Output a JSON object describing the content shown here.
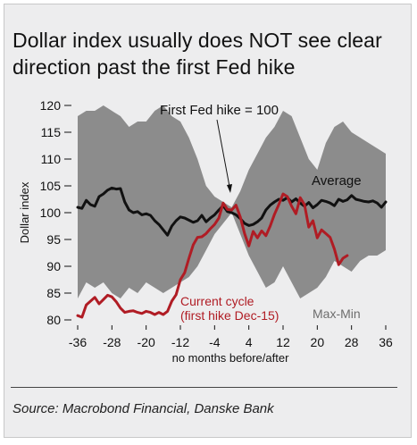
{
  "title": "Dollar index usually does NOT see clear direction past the first Fed hike",
  "source": "Source: Macrobond Financial, Danske Bank",
  "colors": {
    "background": "#ededee",
    "band": "#8c8c8c",
    "average": "#111111",
    "current": "#b01c24"
  },
  "chart_data": {
    "type": "line",
    "xlabel": "no months before/after",
    "ylabel": "Dollar index",
    "xlim": [
      -36,
      36
    ],
    "ylim": [
      80,
      120
    ],
    "x_ticks": [
      -36,
      -28,
      -20,
      -12,
      -4,
      4,
      12,
      20,
      28,
      36
    ],
    "x_tick_labels": [
      "-36",
      "-28",
      "-20",
      "-12",
      "-4",
      "4",
      "12",
      "20",
      "28",
      "36"
    ],
    "y_ticks": [
      80,
      85,
      90,
      95,
      100,
      105,
      110,
      115,
      120
    ],
    "y_tick_labels": [
      "80",
      "85",
      "90",
      "95",
      "100",
      "105",
      "110",
      "115",
      "120"
    ],
    "grid": false,
    "annotations": {
      "first_hike": "First Fed hike = 100",
      "average": "Average",
      "current_line1": "Current cycle",
      "current_line2": "(first hike Dec-15)",
      "maxmin": "Max-Min"
    },
    "band": {
      "name": "Max-Min",
      "x": [
        -36,
        -34,
        -32,
        -30,
        -28,
        -26,
        -24,
        -22,
        -20,
        -18,
        -16,
        -14,
        -12,
        -10,
        -8,
        -6,
        -4,
        -2,
        0,
        2,
        4,
        6,
        8,
        10,
        12,
        14,
        16,
        18,
        20,
        22,
        24,
        26,
        28,
        30,
        32,
        34,
        36
      ],
      "upper": [
        118,
        119,
        119,
        120,
        119,
        118,
        116,
        117,
        117,
        119,
        120,
        118,
        117,
        114,
        110,
        105,
        103,
        102,
        101,
        104,
        108,
        111,
        114,
        116,
        119,
        118,
        114,
        110,
        108,
        113,
        116,
        117,
        115,
        114,
        113,
        112,
        111
      ],
      "lower": [
        84,
        87,
        86,
        87,
        85,
        84,
        86,
        85,
        87,
        86,
        85,
        86,
        87,
        88,
        90,
        93,
        96,
        98,
        100,
        96,
        92,
        89,
        86,
        87,
        90,
        87,
        84,
        85,
        86,
        88,
        91,
        90,
        89,
        91,
        92,
        92,
        93
      ]
    },
    "series": [
      {
        "name": "Average",
        "x": [
          -36,
          -35,
          -34,
          -33,
          -32,
          -31,
          -30,
          -29,
          -28,
          -27,
          -26,
          -25,
          -24,
          -23,
          -22,
          -21,
          -20,
          -19,
          -18,
          -17,
          -16,
          -15,
          -14,
          -13,
          -12,
          -11,
          -10,
          -9,
          -8,
          -7,
          -6,
          -5,
          -4,
          -3,
          -2,
          -1,
          0,
          1,
          2,
          3,
          4,
          5,
          6,
          7,
          8,
          9,
          10,
          11,
          12,
          13,
          14,
          15,
          16,
          17,
          18,
          19,
          20,
          21,
          22,
          23,
          24,
          25,
          26,
          27,
          28,
          29,
          30,
          31,
          32,
          33,
          34,
          35,
          36
        ],
        "values": [
          101,
          100.8,
          102.3,
          101.5,
          101.2,
          103,
          103.5,
          104.2,
          104.6,
          104.4,
          104.5,
          102,
          100.5,
          100,
          100.2,
          99.6,
          99.8,
          99.5,
          98.5,
          97.8,
          96.8,
          95.8,
          97.5,
          98.5,
          99.2,
          99,
          98.6,
          98.2,
          98.5,
          99.5,
          98.3,
          99,
          99.6,
          100.5,
          101.3,
          100.2,
          100,
          99.6,
          98.9,
          98,
          97.6,
          97.8,
          98.3,
          99,
          100.5,
          101.4,
          102,
          102.5,
          102.3,
          102.8,
          102,
          102.6,
          101.8,
          101.2,
          101.9,
          100.9,
          101.5,
          102.3,
          102.1,
          101.8,
          101.3,
          102.5,
          102.1,
          102.4,
          103.2,
          102.5,
          102.3,
          102.1,
          102,
          102.2,
          101.8,
          101,
          102
        ]
      },
      {
        "name": "Current cycle",
        "x": [
          -36,
          -35,
          -34,
          -33,
          -32,
          -31,
          -30,
          -29,
          -28,
          -27,
          -26,
          -25,
          -24,
          -23,
          -22,
          -21,
          -20,
          -19,
          -18,
          -17,
          -16,
          -15,
          -14,
          -13,
          -12,
          -11,
          -10,
          -9,
          -8,
          -7,
          -6,
          -5,
          -4,
          -3,
          -2,
          -1,
          0,
          1,
          2,
          3,
          4,
          5,
          6,
          7,
          8,
          9,
          10,
          11,
          12,
          13,
          14,
          15,
          16,
          17,
          18,
          19,
          20,
          21,
          22,
          23,
          24,
          25,
          26,
          27
        ],
        "values": [
          80.8,
          80.5,
          82.8,
          83.5,
          84.2,
          83,
          83.8,
          84.6,
          84.3,
          83.4,
          82.2,
          81.4,
          81.6,
          81.7,
          81.4,
          81.2,
          81.6,
          81.4,
          81,
          81.4,
          81,
          81.6,
          83.5,
          84.7,
          87.5,
          88.8,
          91.5,
          94,
          95.4,
          95.5,
          96.1,
          97,
          97.8,
          99,
          101.8,
          100.6,
          100.5,
          101.4,
          99.2,
          96.1,
          93.8,
          96.5,
          95.3,
          96.6,
          95.7,
          97.5,
          99.7,
          101.5,
          103.5,
          103,
          101.2,
          99.8,
          102.8,
          101.5,
          97.3,
          98.5,
          95.3,
          96.8,
          96.1,
          95.4,
          93.2,
          90.3,
          91.5,
          92
        ]
      }
    ]
  }
}
